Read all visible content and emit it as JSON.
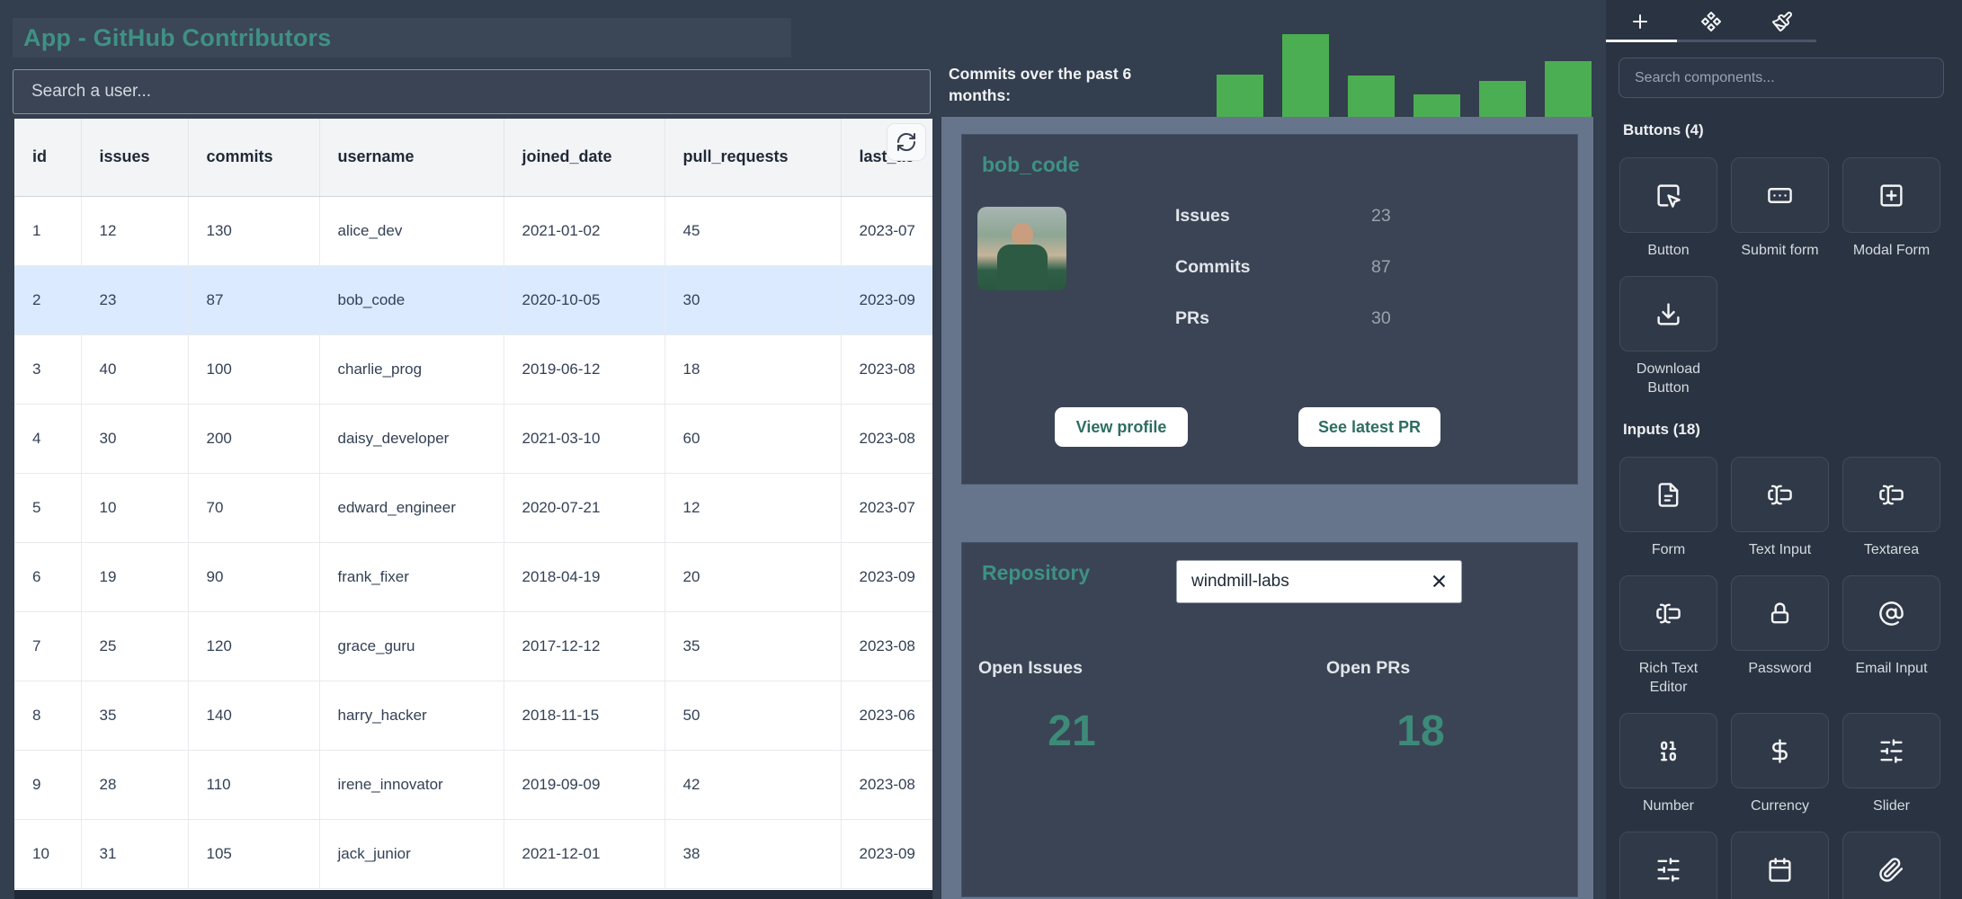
{
  "app": {
    "title": "App - GitHub Contributors"
  },
  "colors": {
    "accent_teal": "#3f9184",
    "metric_teal": "#3d8a78",
    "bar_green": "#4cae52",
    "row_highlight": "#dbeafe",
    "slate_panel": "#67758c",
    "card_bg": "#3a4455",
    "canvas_bg": "#333e4e",
    "sidebar_bg": "#2a3341"
  },
  "user_search": {
    "placeholder": "Search a user..."
  },
  "table": {
    "columns": [
      "id",
      "issues",
      "commits",
      "username",
      "joined_date",
      "pull_requests",
      "last_ac"
    ],
    "rows": [
      [
        "1",
        "12",
        "130",
        "alice_dev",
        "2021-01-02",
        "45",
        "2023-07"
      ],
      [
        "2",
        "23",
        "87",
        "bob_code",
        "2020-10-05",
        "30",
        "2023-09"
      ],
      [
        "3",
        "40",
        "100",
        "charlie_prog",
        "2019-06-12",
        "18",
        "2023-08"
      ],
      [
        "4",
        "30",
        "200",
        "daisy_developer",
        "2021-03-10",
        "60",
        "2023-08"
      ],
      [
        "5",
        "10",
        "70",
        "edward_engineer",
        "2020-07-21",
        "12",
        "2023-07"
      ],
      [
        "6",
        "19",
        "90",
        "frank_fixer",
        "2018-04-19",
        "20",
        "2023-09"
      ],
      [
        "7",
        "25",
        "120",
        "grace_guru",
        "2017-12-12",
        "35",
        "2023-08"
      ],
      [
        "8",
        "35",
        "140",
        "harry_hacker",
        "2018-11-15",
        "50",
        "2023-06"
      ],
      [
        "9",
        "28",
        "110",
        "irene_innovator",
        "2019-09-09",
        "42",
        "2023-08"
      ],
      [
        "10",
        "31",
        "105",
        "jack_junior",
        "2021-12-01",
        "38",
        "2023-09"
      ]
    ],
    "highlighted_row_index": 1
  },
  "chart_data": {
    "type": "bar",
    "title": "Commits over the past 6 months:",
    "categories": [
      "",
      "",
      "",
      "",
      "",
      ""
    ],
    "values": [
      51,
      100,
      50,
      27,
      43,
      67
    ],
    "value_unit": "relative height, % of tallest bar (no axis labels shown)",
    "bar_color": "#4cae52",
    "grid": false,
    "legend": false
  },
  "profile_card": {
    "username": "bob_code",
    "stats": [
      {
        "label": "Issues",
        "value": "23"
      },
      {
        "label": "Commits",
        "value": "87"
      },
      {
        "label": "PRs",
        "value": "30"
      }
    ],
    "view_profile_label": "View profile",
    "see_latest_pr_label": "See latest PR"
  },
  "repository_card": {
    "title": "Repository",
    "input_value": "windmill-labs",
    "metrics": [
      {
        "label": "Open Issues",
        "value": "21"
      },
      {
        "label": "Open PRs",
        "value": "18"
      }
    ]
  },
  "sidebar": {
    "tabs": [
      {
        "name": "insert-tab",
        "icon": "plus-icon",
        "active": true
      },
      {
        "name": "components-tab",
        "icon": "components-icon",
        "active": false
      },
      {
        "name": "styling-tab",
        "icon": "paintbrush-icon",
        "active": false
      }
    ],
    "search_placeholder": "Search components...",
    "sections": [
      {
        "title": "Buttons (4)",
        "items": [
          {
            "label": "Button",
            "icon": "cursor-click-icon"
          },
          {
            "label": "Submit form",
            "icon": "submit-form-icon"
          },
          {
            "label": "Modal Form",
            "icon": "square-plus-icon"
          },
          {
            "label": "Download Button",
            "icon": "download-icon"
          }
        ]
      },
      {
        "title": "Inputs (18)",
        "items": [
          {
            "label": "Form",
            "icon": "document-icon"
          },
          {
            "label": "Text Input",
            "icon": "text-cursor-input-icon"
          },
          {
            "label": "Textarea",
            "icon": "text-cursor-input-icon"
          },
          {
            "label": "Rich Text Editor",
            "icon": "text-cursor-input-icon"
          },
          {
            "label": "Password",
            "icon": "lock-icon"
          },
          {
            "label": "Email Input",
            "icon": "at-sign-icon"
          },
          {
            "label": "Number",
            "icon": "binary-icon"
          },
          {
            "label": "Currency",
            "icon": "dollar-icon"
          },
          {
            "label": "Slider",
            "icon": "sliders-icon"
          },
          {
            "label": "",
            "icon": "sliders-icon"
          },
          {
            "label": "",
            "icon": "calendar-icon"
          },
          {
            "label": "",
            "icon": "paperclip-icon"
          }
        ]
      }
    ]
  }
}
